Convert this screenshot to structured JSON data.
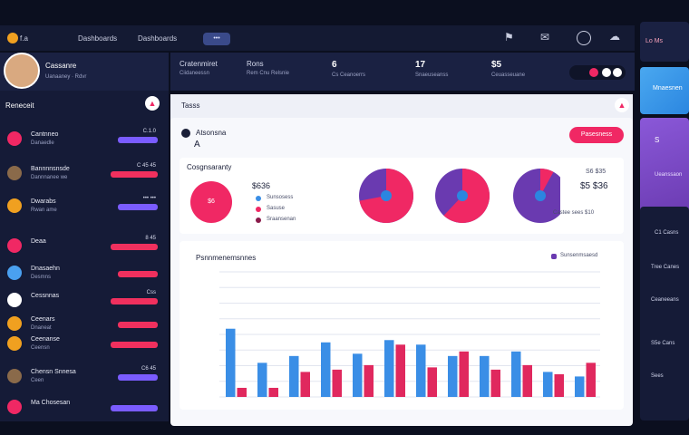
{
  "topbar": {
    "brand": "f.a",
    "nav": [
      "Dashboards",
      "Dashboards"
    ],
    "pill": "•••"
  },
  "header": {
    "user_name": "Cassanre",
    "user_sub": "Uanaaney · Rdvr",
    "stats": [
      {
        "label": "Cratenmiret",
        "sub": "Ciidaneessn",
        "value": ""
      },
      {
        "label": "Rons",
        "sub": "Rem Cnu Relsnie",
        "value": ""
      },
      {
        "label": "Cs Ceanoerrs",
        "sub": "",
        "value": "6"
      },
      {
        "label": "Snaeuseanss",
        "sub": "",
        "value": "17"
      },
      {
        "label": "Ceuasseuane",
        "sub": "",
        "value": "$5"
      }
    ]
  },
  "sidebar": {
    "title": "Reneceit",
    "items": [
      {
        "label": "Cantnneo",
        "sub": "Danaedle",
        "value": "C.1.0",
        "color": "#f02864",
        "bar": "#7a5cff"
      },
      {
        "label": "Bannnnsnsde",
        "sub": "Dannnanee we",
        "value": "C 45 45",
        "color": "#8a6a4a",
        "bar": "#f0305e"
      },
      {
        "label": "Dwarabs",
        "sub": "Rwan ame",
        "value": "••• •••",
        "color": "#f0a020",
        "bar": "#7a5cff"
      },
      {
        "label": "Deaa",
        "sub": "",
        "value": "8 45",
        "color": "#f02864",
        "bar": "#f0305e"
      },
      {
        "label": "Dnasaehn",
        "sub": "Desmns",
        "value": "",
        "color": "#4aa0f0",
        "bar": "#f0305e"
      },
      {
        "label": "Cessnnas",
        "sub": "",
        "value": "Css",
        "color": "#ffffff",
        "bar": "#f0305e"
      },
      {
        "label": "Ceenars",
        "sub": "Dnaneat",
        "value": "",
        "color": "#f0a020",
        "bar": "#f0305e"
      },
      {
        "label": "Ceenanse",
        "sub": "Ceensn",
        "value": "",
        "color": "#f0a020",
        "bar": "#f0305e"
      },
      {
        "label": "Chensn Snnesa",
        "sub": "Ceen",
        "value": "C6 45",
        "color": "#8a6a4a",
        "bar": "#7a5cff"
      },
      {
        "label": "Ma Chosesan",
        "sub": "",
        "value": "",
        "color": "#f02864",
        "bar": "#7a5cff"
      }
    ]
  },
  "main": {
    "tab_title": "Tasss",
    "section_title": "Atsonsna",
    "section_sub": "A",
    "action_button": "Pasesness",
    "overview": {
      "title": "Cosgnsaranty",
      "value": "$636",
      "legend": [
        "Sunsosess",
        "Sasuse",
        "Sraansenan"
      ],
      "right_value": "$5 $36",
      "right_label": "S6 $35",
      "right_sub": "Castee sees $10"
    },
    "bar_chart": {
      "title": "Psnnmenemsnnes",
      "legend": "Sunsenmsaesd"
    }
  },
  "chart_data": {
    "type": "bar",
    "categories": [
      "",
      "",
      "",
      "",
      "",
      "",
      "",
      "",
      "",
      "",
      "",
      ""
    ],
    "series": [
      {
        "values": [
          60,
          30,
          36,
          48,
          38,
          50,
          46,
          36,
          36,
          40,
          22,
          18
        ]
      },
      {
        "values": [
          8,
          8,
          22,
          24,
          28,
          46,
          26,
          40,
          24,
          28,
          20,
          30
        ]
      }
    ],
    "ylim": [
      0,
      110
    ],
    "grid": true
  },
  "donuts": [
    {
      "slice": 0.72,
      "color_a": "#f02864",
      "color_b": "#6a3ab0"
    },
    {
      "slice": 0.62,
      "color_a": "#f02864",
      "color_b": "#6a3ab0"
    },
    {
      "slice": 0.08,
      "color_a": "#f02864",
      "color_b": "#6a3ab0"
    }
  ],
  "rail": {
    "cards": [
      {
        "label": "Lo Ms"
      },
      {
        "label": "Mnaesnen"
      },
      {
        "label": "S",
        "sub": "Ueanssaon"
      },
      {
        "label": "C1 Casns",
        "items": [
          "Tree Canes",
          "Ceaneeans",
          "S5e Cans",
          "Sees"
        ]
      }
    ]
  },
  "colors": {
    "accent": "#f02864",
    "blue": "#3a8ee6",
    "purple": "#6a3ab0"
  }
}
